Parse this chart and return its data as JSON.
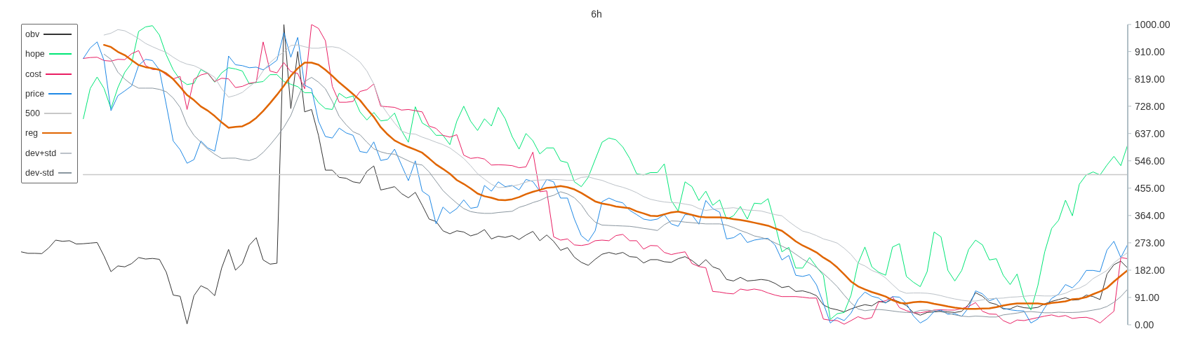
{
  "chart_data": {
    "type": "line",
    "title": "6h",
    "categories": [
      null,
      null,
      null,
      null,
      null,
      null,
      null,
      null,
      null,
      null,
      null,
      null,
      null,
      null,
      null,
      null,
      null,
      null,
      null,
      null,
      null,
      null,
      null,
      null,
      null,
      null,
      null,
      null,
      null,
      null,
      null,
      null,
      null,
      null,
      null,
      null,
      null,
      null,
      null,
      null,
      null,
      null,
      null,
      null,
      null,
      null,
      null,
      null,
      null,
      null,
      null,
      null,
      null,
      null,
      null,
      null,
      null,
      null,
      null,
      null,
      null,
      null,
      null,
      null,
      null,
      null,
      null,
      null,
      null,
      null,
      null,
      null,
      null,
      null,
      null,
      null,
      null,
      null,
      null,
      null,
      null,
      null,
      null,
      null,
      null,
      null,
      null,
      null,
      null,
      null,
      null,
      null,
      null,
      null,
      null,
      null,
      null,
      null,
      null,
      null,
      null,
      null,
      null,
      null,
      null,
      null,
      null,
      null,
      null,
      null,
      null,
      null,
      null,
      null,
      null,
      null,
      null,
      null,
      null,
      null,
      null,
      null,
      null,
      null,
      null,
      null,
      null,
      null,
      null,
      null,
      null,
      null,
      null,
      null,
      null,
      null,
      null,
      null,
      null,
      null,
      null,
      null,
      null,
      null,
      null,
      null,
      null,
      null,
      null,
      null,
      null,
      null,
      null,
      null,
      null,
      null,
      null,
      null,
      null,
      null,
      null
    ],
    "series": [
      {
        "name": "obv",
        "color": "#333333",
        "values": [
          243,
          238,
          238,
          237,
          256,
          282,
          278,
          280,
          269,
          270,
          272,
          274,
          229,
          177,
          196,
          193,
          204,
          224,
          219,
          221,
          218,
          175,
          99,
          95,
          3,
          97,
          130,
          119,
          97,
          189,
          251,
          182,
          204,
          265,
          290,
          216,
          202,
          205,
          1000,
          720,
          910,
          709,
          717,
          631,
          515,
          515,
          491,
          488,
          476,
          472,
          511,
          529,
          449,
          454,
          460,
          437,
          423,
          441,
          398,
          352,
          344,
          313,
          303,
          313,
          309,
          296,
          303,
          317,
          286,
          295,
          291,
          297,
          284,
          299,
          311,
          280,
          299,
          278,
          248,
          257,
          225,
          208,
          198,
          218,
          235,
          241,
          235,
          241,
          227,
          225,
          206,
          217,
          217,
          210,
          208,
          220,
          227,
          214,
          196,
          217,
          193,
          185,
          151,
          146,
          158,
          146,
          148,
          151,
          148,
          138,
          124,
          128,
          111,
          113,
          107,
          97,
          66,
          55,
          50,
          43,
          53,
          61,
          67,
          63,
          78,
          74,
          85,
          76,
          64,
          41,
          32,
          41,
          43,
          45,
          43,
          41,
          45,
          68,
          107,
          95,
          74,
          68,
          53,
          53,
          63,
          57,
          55,
          58,
          70,
          78,
          84,
          90,
          82,
          84,
          99,
          94,
          84,
          169,
          200,
          212,
          189
        ]
      },
      {
        "name": "hope",
        "color": "#00e676",
        "values": [
          null,
          null,
          null,
          null,
          null,
          null,
          null,
          null,
          null,
          686,
          787,
          825,
          787,
          720,
          790,
          841,
          872,
          977,
          992,
          996,
          965,
          899,
          849,
          816,
          800,
          804,
          850,
          837,
          808,
          839,
          856,
          852,
          845,
          802,
          807,
          810,
          833,
          833,
          810,
          801,
          793,
          773,
          773,
          740,
          720,
          717,
          771,
          755,
          762,
          709,
          682,
          707,
          679,
          682,
          705,
          647,
          608,
          726,
          672,
          658,
          631,
          631,
          600,
          678,
          728,
          678,
          647,
          686,
          662,
          724,
          686,
          627,
          585,
          637,
          613,
          569,
          589,
          589,
          546,
          540,
          476,
          460,
          491,
          550,
          608,
          622,
          616,
          592,
          554,
          503,
          499,
          507,
          507,
          536,
          414,
          379,
          476,
          460,
          414,
          445,
          398,
          416,
          352,
          363,
          394,
          352,
          405,
          403,
          420,
          336,
          243,
          258,
          189,
          189,
          224,
          193,
          165,
          18,
          37,
          41,
          99,
          204,
          259,
          193,
          175,
          165,
          259,
          270,
          161,
          142,
          127,
          177,
          309,
          293,
          181,
          146,
          181,
          251,
          282,
          266,
          216,
          220,
          165,
          134,
          169,
          89,
          49,
          130,
          243,
          321,
          348,
          415,
          363,
          468,
          499,
          509,
          499,
          532,
          561,
          530,
          600
        ]
      },
      {
        "name": "cost",
        "color": "#e91e63",
        "values": [
          null,
          null,
          null,
          null,
          null,
          null,
          null,
          null,
          null,
          887,
          890,
          891,
          880,
          878,
          884,
          883,
          903,
          913,
          864,
          850,
          850,
          832,
          819,
          827,
          717,
          818,
          832,
          838,
          810,
          821,
          819,
          790,
          794,
          804,
          808,
          942,
          845,
          839,
          873,
          843,
          837,
          786,
          1000,
          987,
          946,
          794,
          741,
          741,
          744,
          777,
          783,
          802,
          728,
          726,
          724,
          715,
          717,
          713,
          709,
          662,
          654,
          631,
          625,
          633,
          565,
          554,
          557,
          552,
          532,
          533,
          532,
          530,
          523,
          526,
          575,
          443,
          446,
          293,
          282,
          286,
          266,
          264,
          268,
          280,
          282,
          280,
          297,
          301,
          280,
          280,
          252,
          264,
          263,
          241,
          234,
          239,
          243,
          204,
          194,
          190,
          111,
          109,
          105,
          103,
          119,
          115,
          119,
          115,
          106,
          99,
          94,
          94,
          94,
          92,
          89,
          89,
          19,
          15,
          14,
          2,
          14,
          27,
          19,
          24,
          76,
          80,
          93,
          57,
          47,
          40,
          40,
          44,
          49,
          50,
          49,
          49,
          54,
          61,
          74,
          45,
          36,
          35,
          14,
          4,
          16,
          14,
          19,
          24,
          29,
          33,
          27,
          31,
          21,
          24,
          25,
          19,
          6,
          26,
          45,
          224,
          220
        ]
      },
      {
        "name": "price",
        "color": "#1e88e5",
        "values": [
          null,
          null,
          null,
          null,
          null,
          null,
          null,
          null,
          null,
          887,
          922,
          942,
          880,
          713,
          763,
          779,
          796,
          864,
          884,
          880,
          849,
          732,
          612,
          583,
          538,
          550,
          612,
          589,
          578,
          689,
          895,
          866,
          863,
          856,
          858,
          849,
          864,
          881,
          973,
          891,
          957,
          798,
          786,
          678,
          627,
          622,
          655,
          639,
          631,
          577,
          573,
          609,
          547,
          552,
          585,
          532,
          480,
          546,
          445,
          429,
          336,
          392,
          371,
          387,
          416,
          388,
          392,
          464,
          445,
          476,
          460,
          464,
          449,
          484,
          477,
          445,
          484,
          476,
          422,
          422,
          352,
          297,
          278,
          313,
          410,
          422,
          412,
          406,
          381,
          367,
          352,
          348,
          352,
          367,
          336,
          328,
          367,
          366,
          335,
          414,
          387,
          375,
          286,
          290,
          305,
          274,
          282,
          286,
          288,
          266,
          216,
          231,
          165,
          161,
          167,
          133,
          72,
          6,
          24,
          14,
          39,
          84,
          109,
          95,
          89,
          72,
          94,
          92,
          71,
          30,
          6,
          19,
          44,
          49,
          35,
          37,
          28,
          57,
          113,
          103,
          80,
          89,
          55,
          50,
          47,
          46,
          6,
          19,
          57,
          88,
          102,
          134,
          123,
          146,
          181,
          181,
          177,
          249,
          278,
          224,
          268
        ]
      },
      {
        "name": "500",
        "color": "#c8c8c8",
        "values": [
          null,
          null,
          null,
          null,
          null,
          null,
          null,
          null,
          null,
          500,
          500,
          500,
          500,
          500,
          500,
          500,
          500,
          500,
          500,
          500,
          500,
          500,
          500,
          500,
          500,
          500,
          500,
          500,
          500,
          500,
          500,
          500,
          500,
          500,
          500,
          500,
          500,
          500,
          500,
          500,
          500,
          500,
          500,
          500,
          500,
          500,
          500,
          500,
          500,
          500,
          500,
          500,
          500,
          500,
          500,
          500,
          500,
          500,
          500,
          500,
          500,
          500,
          500,
          500,
          500,
          500,
          500,
          500,
          500,
          500,
          500,
          500,
          500,
          500,
          500,
          500,
          500,
          500,
          500,
          500,
          500,
          500,
          500,
          500,
          500,
          500,
          500,
          500,
          500,
          500,
          500,
          500,
          500,
          500,
          500,
          500,
          500,
          500,
          500,
          500,
          500,
          500,
          500,
          500,
          500,
          500,
          500,
          500,
          500,
          500,
          500,
          500,
          500,
          500,
          500,
          500,
          500,
          500,
          500,
          500,
          500,
          500,
          500,
          500,
          500,
          500,
          500,
          500,
          500,
          500,
          500,
          500,
          500,
          500,
          500,
          500,
          500,
          500,
          500,
          500,
          500,
          500,
          500,
          500,
          500,
          500,
          500,
          500,
          500,
          500,
          500,
          500,
          500,
          500,
          500,
          500,
          500,
          500,
          500,
          500,
          500
        ]
      },
      {
        "name": "reg",
        "color": "#e06500",
        "values": [
          null,
          null,
          null,
          null,
          null,
          null,
          null,
          null,
          null,
          null,
          null,
          null,
          932,
          925,
          909,
          898,
          881,
          865,
          858,
          854,
          849,
          837,
          818,
          792,
          765,
          748,
          727,
          713,
          695,
          674,
          656,
          659,
          661,
          672,
          689,
          712,
          738,
          766,
          796,
          829,
          854,
          873,
          873,
          866,
          849,
          829,
          807,
          788,
          768,
          748,
          719,
          692,
          658,
          634,
          614,
          602,
          592,
          583,
          573,
          554,
          534,
          519,
          503,
          482,
          469,
          454,
          437,
          428,
          423,
          416,
          415,
          418,
          425,
          435,
          443,
          449,
          456,
          458,
          462,
          458,
          451,
          439,
          425,
          411,
          404,
          400,
          394,
          391,
          388,
          378,
          371,
          363,
          362,
          368,
          374,
          377,
          372,
          366,
          360,
          358,
          358,
          358,
          356,
          352,
          349,
          345,
          340,
          335,
          330,
          321,
          313,
          296,
          278,
          264,
          253,
          241,
          224,
          210,
          191,
          168,
          144,
          128,
          118,
          109,
          102,
          94,
          82,
          73,
          71,
          75,
          77,
          75,
          70,
          66,
          61,
          57,
          54,
          53,
          53,
          54,
          55,
          59,
          64,
          68,
          71,
          71,
          71,
          71,
          68,
          73,
          75,
          78,
          85,
          87,
          92,
          102,
          111,
          123,
          144,
          163,
          182
        ]
      },
      {
        "name": "dev+std",
        "color": "#bcc2c8",
        "values": [
          null,
          null,
          null,
          null,
          null,
          null,
          null,
          null,
          null,
          null,
          null,
          null,
          965,
          971,
          983,
          979,
          967,
          953,
          937,
          926,
          916,
          907,
          891,
          877,
          868,
          863,
          852,
          839,
          824,
          786,
          758,
          764,
          774,
          793,
          811,
          846,
          873,
          893,
          908,
          930,
          932,
          926,
          921,
          921,
          925,
          926,
          922,
          909,
          893,
          875,
          845,
          802,
          736,
          703,
          672,
          645,
          637,
          635,
          625,
          617,
          608,
          600,
          589,
          572,
          554,
          530,
          503,
          485,
          468,
          457,
          458,
          462,
          467,
          475,
          481,
          482,
          483,
          484,
          483,
          481,
          481,
          491,
          493,
          486,
          481,
          472,
          464,
          458,
          450,
          440,
          427,
          418,
          413,
          409,
          407,
          406,
          402,
          398,
          387,
          381,
          384,
          387,
          388,
          390,
          386,
          382,
          381,
          379,
          373,
          367,
          363,
          344,
          327,
          312,
          306,
          297,
          286,
          280,
          272,
          255,
          234,
          206,
          196,
          181,
          172,
          156,
          134,
          113,
          105,
          106,
          106,
          105,
          102,
          97,
          91,
          86,
          82,
          79,
          79,
          83,
          87,
          88,
          89,
          92,
          93,
          95,
          97,
          97,
          96,
          96,
          99,
          105,
          116,
          122,
          134,
          154,
          167,
          181,
          206,
          224,
          241
        ]
      },
      {
        "name": "dev-std",
        "color": "#8a969f",
        "values": [
          null,
          null,
          null,
          null,
          null,
          null,
          null,
          null,
          null,
          null,
          null,
          null,
          901,
          884,
          841,
          818,
          800,
          788,
          788,
          788,
          784,
          776,
          755,
          724,
          666,
          631,
          608,
          585,
          568,
          554,
          555,
          555,
          550,
          547,
          555,
          574,
          599,
          627,
          658,
          697,
          755,
          810,
          824,
          808,
          786,
          744,
          694,
          666,
          643,
          633,
          608,
          586,
          576,
          570,
          568,
          557,
          546,
          536,
          532,
          509,
          478,
          447,
          425,
          405,
          387,
          377,
          373,
          371,
          371,
          374,
          376,
          378,
          391,
          398,
          407,
          414,
          425,
          431,
          443,
          436,
          423,
          400,
          366,
          342,
          332,
          331,
          330,
          329,
          328,
          325,
          321,
          318,
          314,
          333,
          346,
          345,
          342,
          340,
          338,
          336,
          336,
          336,
          332,
          324,
          314,
          306,
          296,
          291,
          284,
          273,
          262,
          251,
          235,
          219,
          205,
          191,
          171,
          150,
          127,
          99,
          73,
          53,
          47,
          50,
          51,
          49,
          46,
          43,
          41,
          41,
          48,
          49,
          47,
          43,
          39,
          33,
          29,
          27,
          29,
          28,
          26,
          26,
          33,
          36,
          39,
          43,
          44,
          42,
          40,
          40,
          42,
          41,
          41,
          42,
          45,
          49,
          53,
          61,
          75,
          94,
          119
        ]
      }
    ],
    "ylim": [
      0,
      1000
    ],
    "yticks": [
      {
        "value": 0,
        "label": "0.00"
      },
      {
        "value": 91,
        "label": "91.00"
      },
      {
        "value": 182,
        "label": "182.00"
      },
      {
        "value": 273,
        "label": "273.00"
      },
      {
        "value": 364,
        "label": "364.00"
      },
      {
        "value": 455,
        "label": "455.00"
      },
      {
        "value": 546,
        "label": "546.00"
      },
      {
        "value": 637,
        "label": "637.00"
      },
      {
        "value": 728,
        "label": "728.00"
      },
      {
        "value": 819,
        "label": "819.00"
      },
      {
        "value": 910,
        "label": "910.00"
      },
      {
        "value": 1000,
        "label": "1000.00"
      }
    ],
    "grid": false,
    "legend": "top left",
    "tick_labels": "y",
    "marker": "none",
    "line_style": "solid"
  }
}
